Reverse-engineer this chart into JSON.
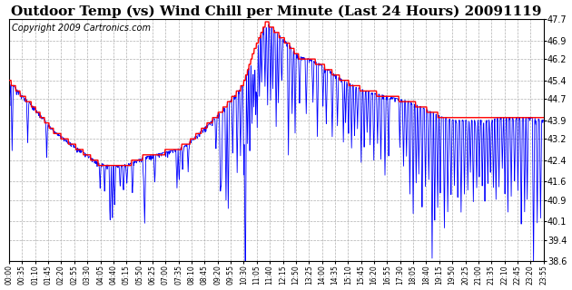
{
  "title": "Outdoor Temp (vs) Wind Chill per Minute (Last 24 Hours) 20091119",
  "copyright": "Copyright 2009 Cartronics.com",
  "yticks": [
    38.6,
    39.4,
    40.1,
    40.9,
    41.6,
    42.4,
    43.2,
    43.9,
    44.7,
    45.4,
    46.2,
    46.9,
    47.7
  ],
  "ylim": [
    38.6,
    47.7
  ],
  "xtick_labels": [
    "00:00",
    "00:35",
    "01:10",
    "01:45",
    "02:20",
    "02:55",
    "03:30",
    "04:05",
    "04:40",
    "05:15",
    "05:50",
    "06:25",
    "07:00",
    "07:35",
    "08:10",
    "08:45",
    "09:20",
    "09:55",
    "10:30",
    "11:05",
    "11:40",
    "12:15",
    "12:50",
    "13:25",
    "14:00",
    "14:35",
    "15:10",
    "15:45",
    "16:20",
    "16:55",
    "17:30",
    "18:05",
    "18:40",
    "19:15",
    "19:50",
    "20:25",
    "21:00",
    "21:35",
    "22:10",
    "22:45",
    "23:20",
    "23:55"
  ],
  "background_color": "#ffffff",
  "plot_bg_color": "#ffffff",
  "grid_color": "#b0b0b0",
  "red_line_color": "#ff0000",
  "blue_line_color": "#0000ff",
  "title_fontsize": 11,
  "copyright_fontsize": 7,
  "red_keypoints_hours": [
    0,
    0.5,
    1.0,
    1.5,
    2.0,
    2.5,
    3.0,
    3.5,
    4.0,
    4.5,
    5.0,
    5.5,
    6.0,
    6.5,
    7.0,
    7.5,
    8.0,
    8.5,
    9.0,
    9.5,
    10.0,
    10.5,
    11.0,
    11.5,
    11.67,
    12.0,
    12.5,
    13.0,
    13.5,
    14.0,
    14.5,
    15.0,
    15.5,
    16.0,
    16.5,
    17.0,
    17.5,
    18.0,
    18.5,
    19.0,
    19.5,
    20.0,
    20.5,
    21.0,
    21.5,
    22.0,
    22.5,
    23.0,
    23.5,
    24.0
  ],
  "red_keypoints_vals": [
    45.4,
    44.9,
    44.5,
    44.0,
    43.5,
    43.2,
    42.9,
    42.6,
    42.3,
    42.2,
    42.2,
    42.3,
    42.5,
    42.6,
    42.7,
    42.8,
    43.0,
    43.4,
    43.8,
    44.2,
    44.7,
    45.2,
    46.5,
    47.5,
    47.5,
    47.2,
    46.8,
    46.3,
    46.2,
    46.0,
    45.7,
    45.4,
    45.2,
    45.0,
    44.9,
    44.8,
    44.7,
    44.6,
    44.4,
    44.2,
    44.0,
    43.9,
    43.9,
    43.9,
    43.9,
    44.0,
    44.0,
    44.0,
    44.0,
    43.9
  ],
  "wc_spike_hours": [
    0.05,
    0.15,
    0.85,
    1.7,
    4.1,
    4.3,
    4.55,
    4.65,
    4.75,
    5.0,
    5.15,
    5.3,
    5.55,
    6.05,
    6.1,
    6.55,
    7.55,
    7.65,
    7.8,
    8.05,
    9.3,
    9.5,
    9.55,
    9.75,
    9.85,
    10.05,
    10.25,
    10.4,
    10.55,
    10.62,
    10.72,
    10.82,
    10.92,
    11.0,
    11.08,
    11.15,
    11.25,
    11.35,
    11.5,
    11.62,
    11.75,
    11.85,
    12.0,
    12.1,
    12.25,
    12.55,
    12.72,
    12.85,
    13.05,
    13.35,
    13.65,
    13.85,
    14.1,
    14.25,
    14.52,
    14.75,
    15.02,
    15.12,
    15.25,
    15.38,
    15.52,
    15.65,
    15.82,
    15.95,
    16.08,
    16.22,
    16.38,
    16.55,
    16.7,
    16.88,
    17.05,
    17.55,
    17.72,
    17.85,
    18.0,
    18.15,
    18.28,
    18.4,
    18.55,
    18.7,
    18.85,
    19.0,
    19.12,
    19.25,
    19.38,
    19.55,
    19.7,
    19.85,
    20.0,
    20.15,
    20.3,
    20.45,
    20.6,
    20.72,
    20.85,
    21.0,
    21.12,
    21.25,
    21.38,
    21.5,
    21.62,
    21.75,
    21.88,
    22.0,
    22.15,
    22.28,
    22.4,
    22.55,
    22.7,
    22.85,
    23.0,
    23.15,
    23.28,
    23.55,
    23.72,
    23.88
  ],
  "wc_spike_drops": [
    1.0,
    2.5,
    1.5,
    1.2,
    0.8,
    0.9,
    2.2,
    1.8,
    1.5,
    0.8,
    1.0,
    0.7,
    1.2,
    0.9,
    2.5,
    1.0,
    1.5,
    1.2,
    0.8,
    1.0,
    1.2,
    3.0,
    2.5,
    3.5,
    4.0,
    2.0,
    3.0,
    2.5,
    3.5,
    9.0,
    2.8,
    3.2,
    2.5,
    2.0,
    2.5,
    3.0,
    2.2,
    1.8,
    2.5,
    3.0,
    2.8,
    2.2,
    3.5,
    2.5,
    1.8,
    4.2,
    2.5,
    3.0,
    1.8,
    2.2,
    1.5,
    2.8,
    1.5,
    2.0,
    2.5,
    1.8,
    2.2,
    1.5,
    1.8,
    2.5,
    2.0,
    1.5,
    2.8,
    2.2,
    1.5,
    2.0,
    2.5,
    1.8,
    2.5,
    3.0,
    2.2,
    1.8,
    2.5,
    2.0,
    3.5,
    4.2,
    3.0,
    2.5,
    3.8,
    3.0,
    2.5,
    5.5,
    4.0,
    3.5,
    3.0,
    4.2,
    3.5,
    2.8,
    2.5,
    3.0,
    3.5,
    2.8,
    2.5,
    2.0,
    3.0,
    2.5,
    2.0,
    2.5,
    3.0,
    2.5,
    2.0,
    2.5,
    3.0,
    2.5,
    2.0,
    2.8,
    3.5,
    3.0,
    2.5,
    2.8,
    4.0,
    3.5,
    3.0,
    5.5,
    4.0,
    3.5
  ]
}
